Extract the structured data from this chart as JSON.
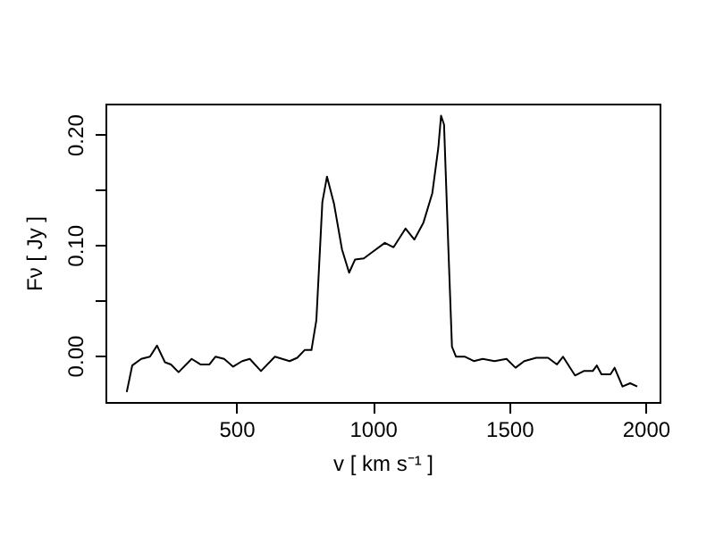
{
  "chart_data": {
    "type": "line",
    "xlabel": "v [ km s⁻¹ ]",
    "ylabel": "Fν [ Jy ]",
    "x": [
      98,
      118,
      151,
      183,
      209,
      238,
      260,
      288,
      336,
      368,
      401,
      423,
      455,
      488,
      521,
      549,
      590,
      641,
      695,
      723,
      750,
      775,
      793,
      815,
      832,
      858,
      887,
      913,
      935,
      967,
      1000,
      1044,
      1076,
      1120,
      1152,
      1185,
      1218,
      1240,
      1250,
      1261,
      1277,
      1290,
      1305,
      1338,
      1370,
      1403,
      1446,
      1490,
      1523,
      1555,
      1599,
      1642,
      1675,
      1697,
      1741,
      1773,
      1806,
      1821,
      1838,
      1871,
      1886,
      1915,
      1943,
      1969
    ],
    "series": [
      {
        "color": "#000000",
        "values": [
          -0.033,
          -0.009,
          -0.003,
          -0.001,
          0.009,
          -0.006,
          -0.008,
          -0.015,
          -0.003,
          -0.008,
          -0.008,
          -0.001,
          -0.003,
          -0.01,
          -0.005,
          -0.003,
          -0.014,
          -0.001,
          -0.005,
          -0.002,
          0.005,
          0.005,
          0.032,
          0.139,
          0.162,
          0.137,
          0.096,
          0.075,
          0.087,
          0.088,
          0.094,
          0.102,
          0.098,
          0.115,
          0.105,
          0.12,
          0.147,
          0.188,
          0.217,
          0.209,
          0.096,
          0.008,
          -0.001,
          -0.001,
          -0.005,
          -0.003,
          -0.005,
          -0.003,
          -0.011,
          -0.005,
          -0.002,
          -0.002,
          -0.008,
          -0.001,
          -0.018,
          -0.014,
          -0.014,
          -0.009,
          -0.017,
          -0.017,
          -0.011,
          -0.028,
          -0.025,
          -0.028
        ]
      }
    ],
    "xlim": [
      20,
      2051
    ],
    "ylim": [
      -0.042,
      0.228
    ],
    "xticks": [
      500,
      1000,
      1500,
      2000
    ],
    "yticks": [
      {
        "value": 0.0,
        "label": "0.00"
      },
      {
        "value": 0.05,
        "label": null
      },
      {
        "value": 0.1,
        "label": "0.10"
      },
      {
        "value": 0.15,
        "label": null
      },
      {
        "value": 0.2,
        "label": "0.20"
      }
    ],
    "grid": false
  }
}
